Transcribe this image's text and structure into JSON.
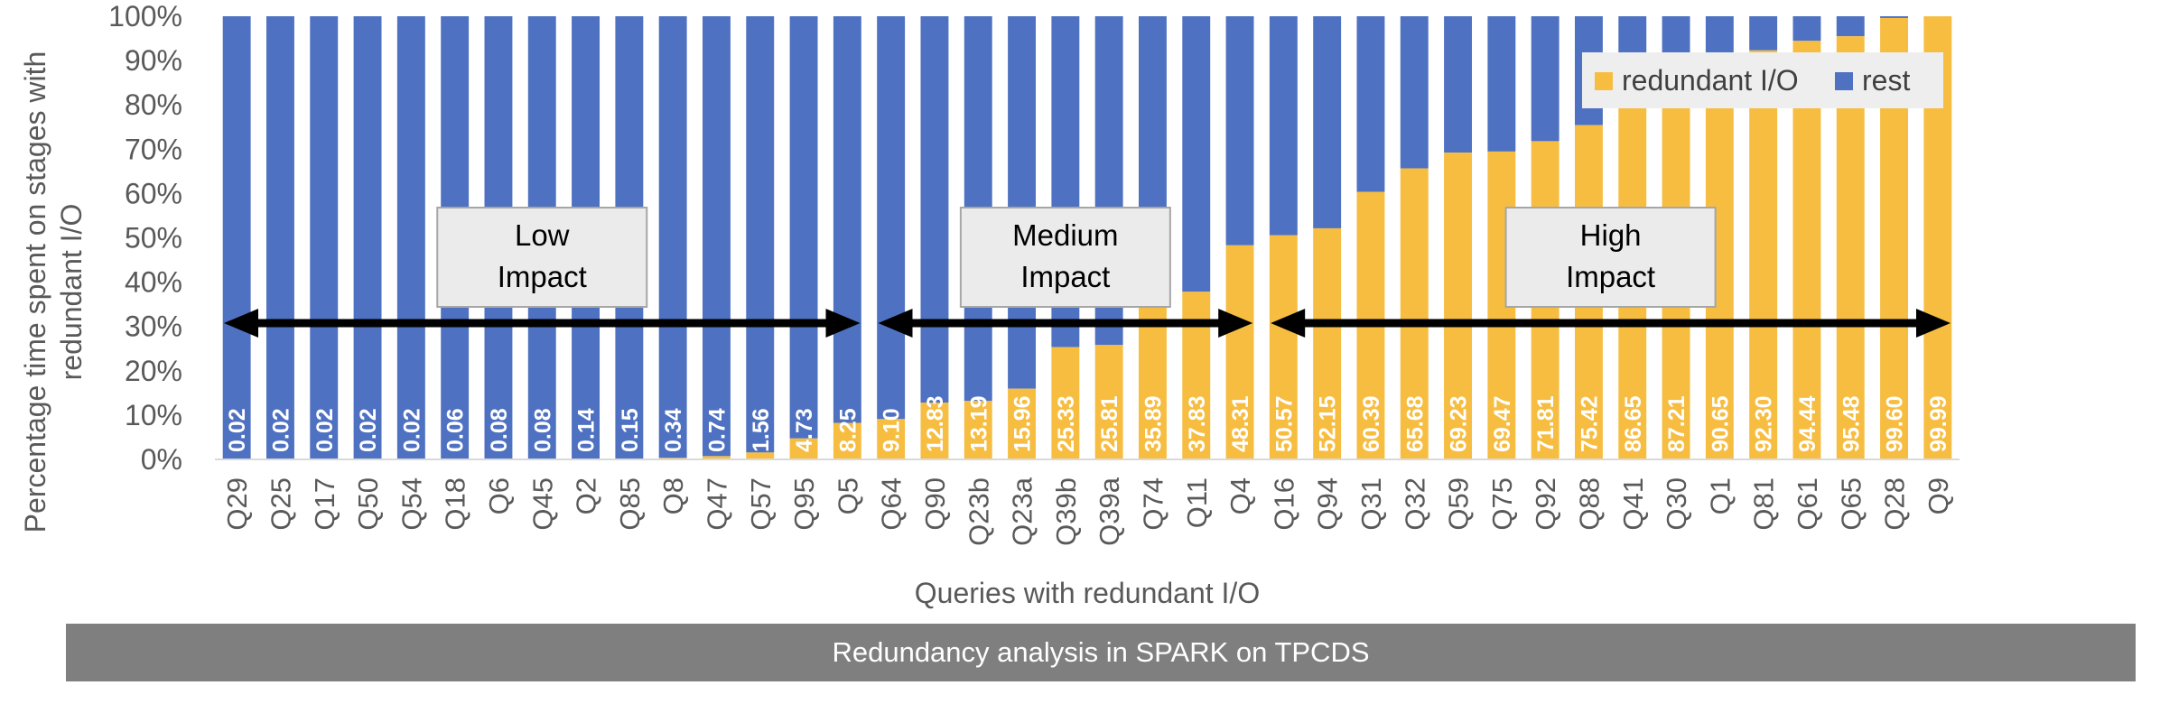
{
  "chart_data": {
    "type": "bar",
    "stacked": true,
    "percent_scale": true,
    "categories": [
      "Q29",
      "Q25",
      "Q17",
      "Q50",
      "Q54",
      "Q18",
      "Q6",
      "Q45",
      "Q2",
      "Q85",
      "Q8",
      "Q47",
      "Q57",
      "Q95",
      "Q5",
      "Q64",
      "Q90",
      "Q23b",
      "Q23a",
      "Q39b",
      "Q39a",
      "Q74",
      "Q11",
      "Q4",
      "Q16",
      "Q94",
      "Q31",
      "Q32",
      "Q59",
      "Q75",
      "Q92",
      "Q88",
      "Q41",
      "Q30",
      "Q1",
      "Q81",
      "Q61",
      "Q65",
      "Q28",
      "Q9"
    ],
    "series": [
      {
        "name": "redundant I/O",
        "color": "#f6bd41",
        "values": [
          0.02,
          0.02,
          0.02,
          0.02,
          0.02,
          0.06,
          0.08,
          0.08,
          0.14,
          0.15,
          0.34,
          0.74,
          1.56,
          4.73,
          8.25,
          9.1,
          12.83,
          13.19,
          15.96,
          25.33,
          25.81,
          35.89,
          37.83,
          48.31,
          50.57,
          52.15,
          60.39,
          65.68,
          69.23,
          69.47,
          71.81,
          75.42,
          86.65,
          87.21,
          90.65,
          92.3,
          94.44,
          95.48,
          99.6,
          99.99
        ]
      },
      {
        "name": "rest",
        "color": "#4e71c1"
      }
    ],
    "data_labels": [
      "0.02",
      "0.02",
      "0.02",
      "0.02",
      "0.02",
      "0.06",
      "0.08",
      "0.08",
      "0.14",
      "0.15",
      "0.34",
      "0.74",
      "1.56",
      "4.73",
      "8.25",
      "9.10",
      "12.83",
      "13.19",
      "15.96",
      "25.33",
      "25.81",
      "35.89",
      "37.83",
      "48.31",
      "50.57",
      "52.15",
      "60.39",
      "65.68",
      "69.23",
      "69.47",
      "71.81",
      "75.42",
      "86.65",
      "87.21",
      "90.65",
      "92.30",
      "94.44",
      "95.48",
      "99.60",
      "99.99"
    ],
    "ylim": [
      0,
      100
    ],
    "yticks": [
      "0%",
      "10%",
      "20%",
      "30%",
      "40%",
      "50%",
      "60%",
      "70%",
      "80%",
      "90%",
      "100%"
    ],
    "xlabel": "Queries with redundant I/O",
    "ylabel_lines": [
      "Percentage time spent on stages with",
      "redundant I/O"
    ],
    "legend_position": "top-right",
    "legend": [
      {
        "label": "redundant I/O",
        "color": "#f6bd41"
      },
      {
        "label": "rest",
        "color": "#4e71c1"
      }
    ],
    "annotations": [
      {
        "lines": [
          "Low",
          "Impact"
        ],
        "from": "Q29",
        "to": "Q5"
      },
      {
        "lines": [
          "Medium",
          "Impact"
        ],
        "from": "Q64",
        "to": "Q4"
      },
      {
        "lines": [
          "High",
          "Impact"
        ],
        "from": "Q16",
        "to": "Q9"
      }
    ]
  },
  "caption": "Redundancy analysis in SPARK on TPCDS"
}
